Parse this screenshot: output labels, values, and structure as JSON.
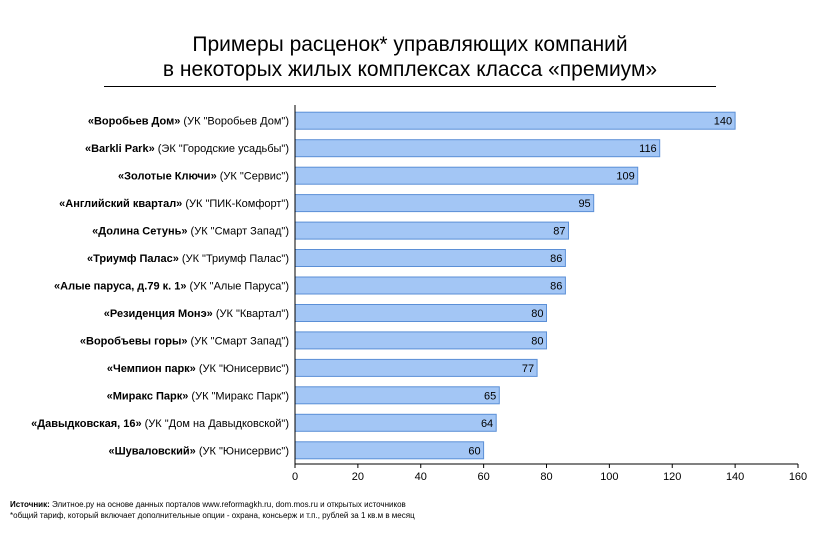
{
  "title_line1": "Примеры расценок* управляющих компаний",
  "title_line2": "в некоторых жилых комплексах класса «премиум»",
  "source_label": "Источник:",
  "source_text": "Элитное.ру на основе данных порталов www.reformagkh.ru, dom.mos.ru и открытых источников",
  "footnote": "*общий тариф, который включает дополнительные опции - охрана, консьерж и т.п., рублей за 1 кв.м в месяц",
  "colors": {
    "bar_fill": "#a3c6f5",
    "bar_stroke": "#5b8fd6",
    "axis": "#000000"
  },
  "chart_data": {
    "type": "bar",
    "orientation": "horizontal",
    "categories": [
      {
        "bold": "«Воробьев Дом»",
        "rest": " (УК \"Воробьев Дом\")"
      },
      {
        "bold": "«Barkli Park»",
        "rest": " (ЭК \"Городские усадьбы\")"
      },
      {
        "bold": "«Золотые Ключи»",
        "rest": " (УК \"Сервис\")"
      },
      {
        "bold": "«Английский квартал»",
        "rest": " (УК \"ПИК-Комфорт\")"
      },
      {
        "bold": "«Долина Сетунь»",
        "rest": " (УК \"Смарт Запад\")"
      },
      {
        "bold": "«Триумф Палас»",
        "rest": " (УК \"Триумф Палас\")"
      },
      {
        "bold": "«Алые паруса, д.79 к. 1»",
        "rest": " (УК \"Алые Паруса\")"
      },
      {
        "bold": "«Резиденция Монэ»",
        "rest": " (УК \"Квартал\")"
      },
      {
        "bold": "«Воробъевы горы»",
        "rest": " (УК \"Смарт Запад\")"
      },
      {
        "bold": "«Чемпион парк»",
        "rest": " (УК \"Юнисервис\")"
      },
      {
        "bold": "«Миракс Парк»",
        "rest": " (УК \"Миракс Парк\")"
      },
      {
        "bold": "«Давыдковская, 16»",
        "rest": " (УК \"Дом на Давыдковской\")"
      },
      {
        "bold": "«Шуваловский»",
        "rest": " (УК \"Юнисервис\")"
      }
    ],
    "values": [
      140,
      116,
      109,
      95,
      87,
      86,
      86,
      80,
      80,
      77,
      65,
      64,
      60
    ],
    "xlim": [
      0,
      160
    ],
    "xticks": [
      0,
      20,
      40,
      60,
      80,
      100,
      120,
      140,
      160
    ],
    "grid": false,
    "legend": "none"
  }
}
